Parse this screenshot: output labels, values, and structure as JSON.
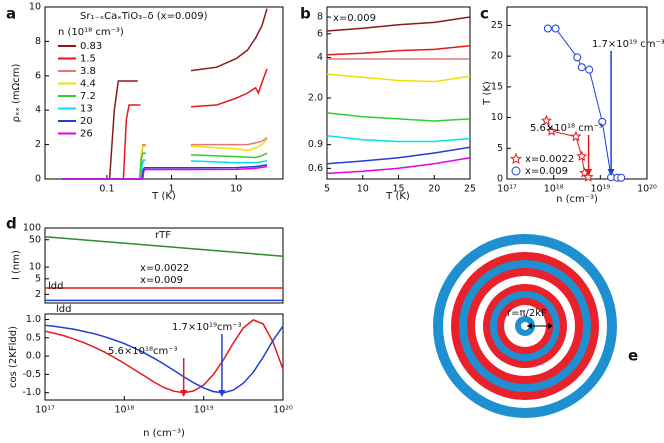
{
  "chart_data": [
    {
      "type": "line",
      "label": "a",
      "title": "Sr₁₋ₓCaₓTiO₃₋δ (x=0.009)",
      "legend_title": "n (10¹⁸ cm⁻³)",
      "xlabel": "T (K)",
      "ylabel": "ρₓₓ (mΩcm)",
      "xscale": "log",
      "xlim": [
        0.011,
        53
      ],
      "xticks": [
        0.1,
        1,
        10
      ],
      "ylim": [
        0,
        10
      ],
      "yticks": [
        0,
        2,
        4,
        6,
        8,
        10
      ],
      "legend": "upper left",
      "series": [
        {
          "name": "0.83",
          "color": "#8b1a1a",
          "x": [
            0.02,
            0.11,
            0.13,
            0.15,
            0.3,
            1,
            2,
            5,
            10,
            15,
            20,
            25,
            30
          ],
          "values": [
            0,
            0,
            4,
            5.7,
            5.7,
            null,
            6.3,
            6.5,
            7.0,
            7.5,
            8.2,
            8.9,
            9.9
          ]
        },
        {
          "name": "1.5",
          "color": "#e31a1c",
          "x": [
            0.02,
            0.18,
            0.2,
            0.22,
            0.33,
            1,
            2,
            5,
            10,
            15,
            20,
            22,
            25,
            30
          ],
          "values": [
            0,
            0,
            3.5,
            4.3,
            4.3,
            null,
            4.2,
            4.3,
            4.7,
            5.0,
            5.3,
            5.0,
            5.6,
            6.4
          ]
        },
        {
          "name": "3.8",
          "color": "#e07a7a",
          "x": [
            0.02,
            0.33,
            0.35,
            0.36,
            0.4,
            1,
            2,
            10,
            15,
            20,
            25,
            30
          ],
          "values": [
            0,
            0,
            1.5,
            2.0,
            2.0,
            null,
            2.0,
            2.0,
            2.0,
            2.1,
            2.2,
            2.4
          ]
        },
        {
          "name": "4.4",
          "color": "#f0e000",
          "x": [
            0.02,
            0.32,
            0.34,
            0.36,
            0.4,
            1,
            2,
            10,
            15,
            20,
            25,
            30
          ],
          "values": [
            0,
            0,
            1.5,
            1.9,
            1.9,
            null,
            1.9,
            1.75,
            1.65,
            1.8,
            2.0,
            2.3
          ]
        },
        {
          "name": "7.2",
          "color": "#33cc33",
          "x": [
            0.02,
            0.32,
            0.34,
            0.36,
            0.4,
            1,
            2,
            10,
            20,
            25,
            30
          ],
          "values": [
            0,
            0,
            1.2,
            1.5,
            1.5,
            null,
            1.4,
            1.3,
            1.25,
            1.35,
            1.5
          ]
        },
        {
          "name": "13",
          "color": "#00e0ee",
          "x": [
            0.02,
            0.34,
            0.35,
            0.37,
            0.4,
            1,
            2,
            10,
            20,
            30
          ],
          "values": [
            0,
            0,
            0.8,
            1.1,
            1.1,
            null,
            1.05,
            0.95,
            0.95,
            1.05
          ]
        },
        {
          "name": "20",
          "color": "#1f3fd6",
          "x": [
            0.02,
            0.35,
            0.36,
            0.38,
            2,
            10,
            20,
            30
          ],
          "values": [
            0,
            0,
            0.5,
            0.65,
            0.65,
            0.66,
            0.72,
            0.82
          ]
        },
        {
          "name": "26",
          "color": "#e600e6",
          "x": [
            0.02,
            0.36,
            0.37,
            0.39,
            2,
            10,
            20,
            30
          ],
          "values": [
            0,
            0,
            0.45,
            0.55,
            0.55,
            0.56,
            0.62,
            0.72
          ]
        }
      ]
    },
    {
      "type": "line",
      "label": "b",
      "annotation": "x=0.009",
      "xlabel": "T (K)",
      "xlim": [
        5,
        25
      ],
      "xticks": [
        5,
        10,
        15,
        20,
        25
      ],
      "yscale": "log",
      "ylim": [
        0.5,
        9.5
      ],
      "yticks": [
        0.6,
        0.9,
        {
          "value": 2,
          "label": "2.0"
        },
        4,
        6,
        8
      ],
      "x": [
        5,
        10,
        15,
        20,
        25
      ],
      "series": [
        {
          "color": "#8b1a1a",
          "values": [
            6.3,
            6.6,
            7.0,
            7.3,
            8.0
          ]
        },
        {
          "color": "#e31a1c",
          "values": [
            4.2,
            4.3,
            4.5,
            4.6,
            4.9
          ]
        },
        {
          "color": "#e07a7a",
          "values": [
            3.9,
            3.9,
            3.9,
            3.9,
            3.9
          ]
        },
        {
          "color": "#f0e000",
          "values": [
            3.0,
            2.85,
            2.7,
            2.65,
            2.9
          ]
        },
        {
          "color": "#33cc33",
          "values": [
            1.55,
            1.45,
            1.4,
            1.35,
            1.4
          ]
        },
        {
          "color": "#00e0ee",
          "values": [
            1.05,
            0.98,
            0.95,
            0.95,
            1.0
          ]
        },
        {
          "color": "#1f3fd6",
          "values": [
            0.65,
            0.68,
            0.72,
            0.78,
            0.86
          ]
        },
        {
          "color": "#e600e6",
          "values": [
            0.55,
            0.57,
            0.6,
            0.65,
            0.72
          ]
        }
      ]
    },
    {
      "type": "scatter",
      "label": "c",
      "xlabel": "n (cm⁻³)",
      "ylabel": "T (K)",
      "xscale": "log",
      "xlim": [
        1e+17,
        1e+20
      ],
      "xticks": [
        {
          "value": 1e+17,
          "label": "10¹⁷"
        },
        {
          "value": 1e+18,
          "label": "10¹⁸"
        },
        {
          "value": 1e+19,
          "label": "10¹⁹"
        },
        {
          "value": 1e+20,
          "label": "10²⁰"
        }
      ],
      "ylim": [
        0,
        28
      ],
      "yticks": [
        0,
        5,
        10,
        15,
        20,
        25
      ],
      "legend": "lower left",
      "series": [
        {
          "name": "x=0.0022",
          "color": "#e31a1c",
          "marker": "star",
          "x": [
            7e+17,
            9e+17,
            3e+18,
            4e+18,
            4.6e+18,
            5.5e+18
          ],
          "values": [
            9.5,
            7.8,
            6.9,
            3.7,
            1.0,
            0.3
          ]
        },
        {
          "name": "x=0.009",
          "color": "#1f3fd6",
          "marker": "circle",
          "x": [
            7.5e+17,
            1.1e+18,
            3.2e+18,
            4e+18,
            5.8e+18,
            1.1e+19,
            1.7e+19,
            2.3e+19,
            2.8e+19
          ],
          "values": [
            24.5,
            24.5,
            19.8,
            18.2,
            17.8,
            9.3,
            0.3,
            0.2,
            0.2
          ]
        }
      ],
      "annotations": [
        {
          "text": "1.7×10¹⁹ cm⁻³",
          "value": 1.7e+19,
          "color": "#1f3fd6"
        },
        {
          "text": "5.6×10¹⁸ cm⁻³",
          "value": 5.6e+18,
          "color": "#e31a1c"
        }
      ]
    },
    {
      "type": "line",
      "label": "d",
      "ylabel": "l (nm)",
      "xscale": "log",
      "xlim": [
        1e+17,
        1e+20
      ],
      "yscale": "log",
      "ylim": [
        1.2,
        100
      ],
      "yticks": [
        2,
        5,
        10,
        50,
        100
      ],
      "x": [
        1e+17,
        1e+20
      ],
      "series": [
        {
          "name": "rTF",
          "color": "#2e8b2e",
          "values": [
            60,
            19
          ]
        },
        {
          "name": "ldd",
          "color": "#e31a1c",
          "values": [
            2.9,
            2.9
          ]
        },
        {
          "name": "ldd",
          "color": "#1f3fd6",
          "values": [
            1.4,
            1.4
          ]
        }
      ],
      "annotations": [
        {
          "text": "x=0.0022",
          "color": "#e31a1c"
        },
        {
          "text": "x=0.009",
          "color": "#1f3fd6"
        }
      ]
    },
    {
      "type": "line",
      "xlabel": "n (cm⁻³)",
      "ylabel": "cos (2KFldd)",
      "xscale": "log",
      "xlim": [
        1e+17,
        1e+20
      ],
      "xticks": [
        {
          "value": 1e+17,
          "label": "10¹⁷"
        },
        {
          "value": 1e+18,
          "label": "10¹⁸"
        },
        {
          "value": 1e+19,
          "label": "10¹⁹"
        },
        {
          "value": 1e+20,
          "label": "10²⁰"
        }
      ],
      "ylim": [
        -1.2,
        1.15
      ],
      "yticks": [
        {
          "value": -1,
          "label": "-1.0"
        },
        -0.5,
        {
          "value": 0,
          "label": "0.0"
        },
        0.5,
        {
          "value": 1,
          "label": "1.0"
        }
      ],
      "x": [
        1e+17,
        1.33e+17,
        1.78e+17,
        2.37e+17,
        3.16e+17,
        4.22e+17,
        5.62e+17,
        7.5e+17,
        1e+18,
        1.33e+18,
        1.78e+18,
        2.37e+18,
        3.16e+18,
        4.22e+18,
        5.62e+18,
        7.5e+18,
        1e+19,
        1.33e+19,
        1.78e+19,
        2.37e+19,
        3.16e+19,
        4.22e+19,
        5.62e+19,
        7.5e+19,
        1e+20
      ],
      "series": [
        {
          "color": "#e31a1c",
          "values": [
            0.68,
            0.62,
            0.55,
            0.46,
            0.36,
            0.24,
            0.11,
            -0.04,
            -0.2,
            -0.37,
            -0.54,
            -0.71,
            -0.86,
            -0.96,
            -1,
            -0.95,
            -0.79,
            -0.5,
            -0.1,
            0.36,
            0.77,
            0.99,
            0.88,
            0.38,
            -0.36
          ]
        },
        {
          "color": "#1f3fd6",
          "values": [
            0.84,
            0.81,
            0.77,
            0.73,
            0.67,
            0.61,
            0.53,
            0.44,
            0.34,
            0.22,
            0.09,
            -0.06,
            -0.22,
            -0.39,
            -0.57,
            -0.73,
            -0.87,
            -0.97,
            -1,
            -0.93,
            -0.74,
            -0.44,
            -0.03,
            0.43,
            0.82
          ]
        }
      ],
      "annotations": [
        {
          "text": "1.7×10¹⁹cm⁻³",
          "value": 1.7e+19,
          "color": "#1f3fd6"
        },
        {
          "text": "5.6×10¹⁸cm⁻³",
          "value": 5.6e+18,
          "color": "#e31a1c"
        }
      ]
    }
  ],
  "diagram": {
    "label": "e",
    "annotation": "r=π/2kF"
  }
}
